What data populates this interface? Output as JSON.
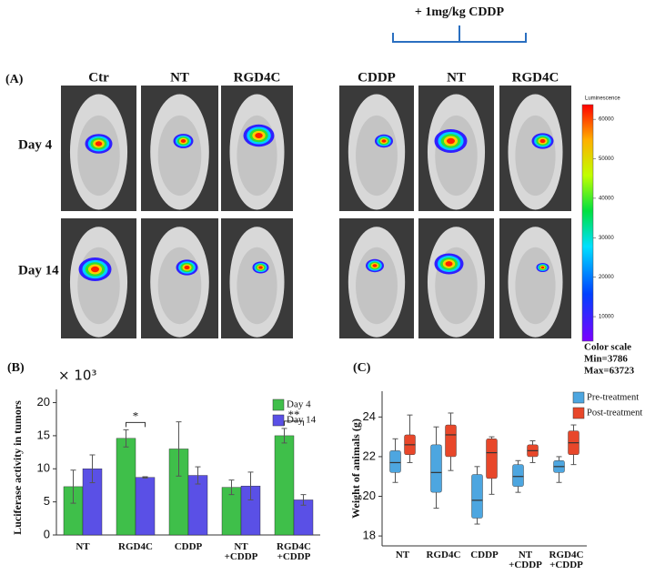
{
  "panel_a": {
    "label": "(A)",
    "treatment_header": "+ 1mg/kg CDDP",
    "columns": [
      "Ctr",
      "NT",
      "RGD4C",
      "CDDP",
      "NT",
      "RGD4C"
    ],
    "rows": [
      "Day 4",
      "Day 14"
    ],
    "colorbar": {
      "title": "Luminescence",
      "lim": [
        3786,
        63723
      ],
      "ticks": [
        10000,
        20000,
        30000,
        40000,
        50000,
        60000
      ],
      "caption": "Color scale",
      "min_label": "Min=3786",
      "max_label": "Max=63723"
    }
  },
  "chart_data": [
    {
      "panel_label": "(B)",
      "type": "bar",
      "multiplier": "× 10³",
      "y_label": "Luciferase activity in tumors",
      "categories": [
        "NT",
        "RGD4C",
        "CDDP",
        "NT +CDDP",
        "RGD4C +CDDP"
      ],
      "series": [
        {
          "name": "Day 4",
          "color": "#3fbf4a",
          "values": [
            7.3,
            14.6,
            13,
            7.2,
            15
          ],
          "errors": [
            2.5,
            1.3,
            4.1,
            1.1,
            1.1
          ]
        },
        {
          "name": "Day 14",
          "color": "#5a50e6",
          "values": [
            10,
            8.7,
            9,
            7.4,
            5.3
          ],
          "errors": [
            2.1,
            0.1,
            1.3,
            2.1,
            0.8
          ]
        }
      ],
      "ylim": [
        0,
        22
      ],
      "yticks": [
        0,
        5,
        10,
        15,
        20
      ],
      "legend": "upper right",
      "annotations": [
        "*",
        "**"
      ]
    },
    {
      "panel_label": "(C)",
      "type": "box",
      "y_label": "Weight of animals (g)",
      "categories": [
        "NT",
        "RGD4C",
        "CDDP",
        "NT +CDDP",
        "RGD4C +CDDP"
      ],
      "series": [
        {
          "name": "Pre-treatment",
          "color": "#4da6e0",
          "values": [
            {
              "low": 20.7,
              "q1": 21.2,
              "median": 21.7,
              "q3": 22.3,
              "high": 22.9
            },
            {
              "low": 19.4,
              "q1": 20.2,
              "median": 21.2,
              "q3": 22.6,
              "high": 23.5
            },
            {
              "low": 18.6,
              "q1": 18.9,
              "median": 19.8,
              "q3": 21.1,
              "high": 21.5
            },
            {
              "low": 20.2,
              "q1": 20.5,
              "median": 21.0,
              "q3": 21.6,
              "high": 21.8
            },
            {
              "low": 20.7,
              "q1": 21.2,
              "median": 21.5,
              "q3": 21.8,
              "high": 22.0
            }
          ]
        },
        {
          "name": "Post-treatment",
          "color": "#e8472a",
          "values": [
            {
              "low": 21.7,
              "q1": 22.1,
              "median": 22.6,
              "q3": 23.1,
              "high": 24.1
            },
            {
              "low": 21.3,
              "q1": 22.0,
              "median": 23.1,
              "q3": 23.6,
              "high": 24.2
            },
            {
              "low": 20.1,
              "q1": 20.9,
              "median": 22.2,
              "q3": 22.9,
              "high": 23.0
            },
            {
              "low": 21.7,
              "q1": 22.0,
              "median": 22.3,
              "q3": 22.6,
              "high": 22.8
            },
            {
              "low": 21.6,
              "q1": 22.1,
              "median": 22.7,
              "q3": 23.3,
              "high": 23.6
            }
          ]
        }
      ],
      "ylim": [
        17.5,
        25.3
      ],
      "yticks": [
        18,
        20,
        22,
        24
      ],
      "legend": "upper right"
    }
  ]
}
